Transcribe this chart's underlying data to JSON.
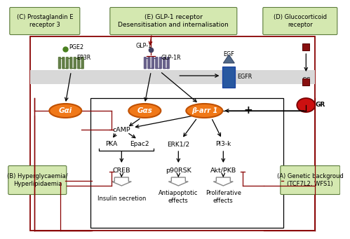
{
  "bg_color": "#ffffff",
  "box_green_fill": "#d4e8b0",
  "box_green_edge": "#5a7a3a",
  "orange_fill": "#f07818",
  "orange_edge": "#c05000",
  "red": "#880000",
  "black": "#000000",
  "membrane_fill": "#d8d8d8",
  "receptor_green": "#4a6a2a",
  "receptor_purple": "#504878",
  "egfr_blue": "#2858a0",
  "gc_dark_red": "#881010",
  "gr_red": "#cc1010",
  "title_C": "(C) Prostaglandin E\nreceptor 3",
  "title_E": "(E) GLP-1 receptor\nDesensitisation and internalisation",
  "title_D": "(D) Glucocorticoid\nreceptor",
  "label_A": "(A) Genetic backgroud\n(TCF7L2, WFS1)",
  "label_B": "(B) Hyperglycaemia/\nHyperlipidaemia"
}
